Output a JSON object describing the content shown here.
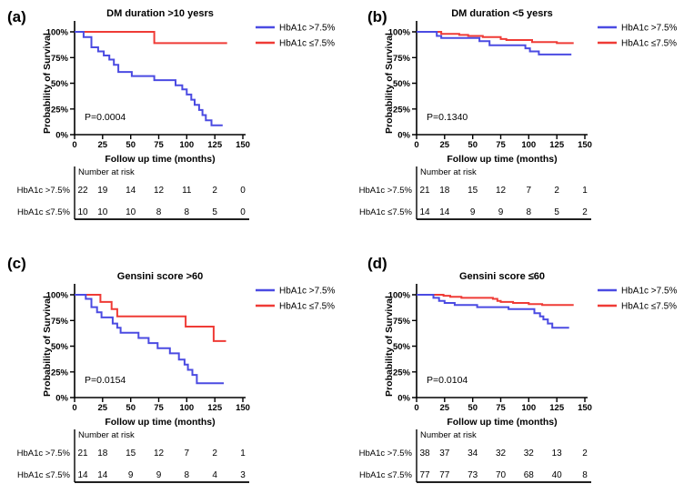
{
  "figure": {
    "background": "#ffffff",
    "description": "Kaplan-Meier survival curves, 2x2 grid of subgroup panels"
  },
  "colors": {
    "hba1c_high": "#4B4BE2",
    "hba1c_low": "#EF3B36",
    "axis": "#000000",
    "text": "#000000"
  },
  "chart_data": [
    {
      "type": "line",
      "subtype": "kaplan-meier-step",
      "panel_label": "(a)",
      "title": "DM duration >10 yesrs",
      "xlabel": "Follow up time (months)",
      "ylabel": "Probability of Survival",
      "xlim": [
        0,
        150
      ],
      "ylim": [
        0,
        100
      ],
      "grid": false,
      "legend_position": "right-top",
      "xtick_labels": [
        "0",
        "25",
        "50",
        "75",
        "100",
        "125",
        "150"
      ],
      "ytick_labels": [
        "100%",
        "75%",
        "50%",
        "25%",
        "0%"
      ],
      "pvalue": "P=0.0004",
      "series": [
        {
          "name": "HbA1c >7.5%",
          "color": "#4B4BE2",
          "steps": [
            [
              0,
              100
            ],
            [
              8,
              95
            ],
            [
              15,
              85
            ],
            [
              21,
              81
            ],
            [
              26,
              77
            ],
            [
              31,
              73
            ],
            [
              35,
              68
            ],
            [
              39,
              61
            ],
            [
              51,
              57
            ],
            [
              71,
              53
            ],
            [
              90,
              48
            ],
            [
              96,
              44
            ],
            [
              100,
              39
            ],
            [
              104,
              34
            ],
            [
              107,
              29
            ],
            [
              111,
              24
            ],
            [
              114,
              19
            ],
            [
              117,
              14
            ],
            [
              122,
              9
            ],
            [
              132,
              9
            ]
          ]
        },
        {
          "name": "HbA1c ≤7.5%",
          "color": "#EF3B36",
          "steps": [
            [
              0,
              100
            ],
            [
              71,
              89
            ],
            [
              136,
              89
            ]
          ]
        }
      ],
      "risk_table": {
        "header": "Number at risk",
        "rows": [
          {
            "label": "HbA1c >7.5%",
            "values": [
              "22",
              "19",
              "14",
              "12",
              "11",
              "2",
              "0"
            ]
          },
          {
            "label": "HbA1c ≤7.5%",
            "values": [
              "10",
              "10",
              "10",
              "8",
              "8",
              "5",
              "0"
            ]
          }
        ]
      }
    },
    {
      "type": "line",
      "subtype": "kaplan-meier-step",
      "panel_label": "(b)",
      "title": "DM duration <5 yesrs",
      "xlabel": "Follow up time (months)",
      "ylabel": "Probability of Survival",
      "xlim": [
        0,
        150
      ],
      "ylim": [
        0,
        100
      ],
      "grid": false,
      "legend_position": "right-top",
      "xtick_labels": [
        "0",
        "25",
        "50",
        "75",
        "100",
        "125",
        "150"
      ],
      "ytick_labels": [
        "100%",
        "75%",
        "50%",
        "25%",
        "0%"
      ],
      "pvalue": "P=0.1340",
      "series": [
        {
          "name": "HbA1c >7.5%",
          "color": "#4B4BE2",
          "steps": [
            [
              0,
              100
            ],
            [
              18,
              96
            ],
            [
              22,
              94
            ],
            [
              56,
              91
            ],
            [
              65,
              87
            ],
            [
              97,
              84
            ],
            [
              101,
              81
            ],
            [
              109,
              78
            ],
            [
              138,
              78
            ]
          ]
        },
        {
          "name": "HbA1c ≤7.5%",
          "color": "#EF3B36",
          "steps": [
            [
              0,
              100
            ],
            [
              22,
              98
            ],
            [
              38,
              97
            ],
            [
              46,
              96
            ],
            [
              59,
              95
            ],
            [
              75,
              93
            ],
            [
              80,
              92
            ],
            [
              103,
              90
            ],
            [
              125,
              89
            ],
            [
              140,
              89
            ]
          ]
        }
      ],
      "risk_table": {
        "header": "Number at risk",
        "rows": [
          {
            "label": "HbA1c >7.5%",
            "values": [
              "21",
              "18",
              "15",
              "12",
              "7",
              "2",
              "1"
            ]
          },
          {
            "label": "HbA1c ≤7.5%",
            "values": [
              "14",
              "14",
              "9",
              "9",
              "8",
              "5",
              "2"
            ]
          }
        ]
      }
    },
    {
      "type": "line",
      "subtype": "kaplan-meier-step",
      "panel_label": "(c)",
      "title": "Gensini score >60",
      "xlabel": "Follow up time (months)",
      "ylabel": "Probability of Survival",
      "xlim": [
        0,
        150
      ],
      "ylim": [
        0,
        100
      ],
      "grid": false,
      "legend_position": "right-top",
      "xtick_labels": [
        "0",
        "25",
        "50",
        "75",
        "100",
        "125",
        "150"
      ],
      "ytick_labels": [
        "100%",
        "75%",
        "50%",
        "25%",
        "0%"
      ],
      "pvalue": "P=0.0154",
      "series": [
        {
          "name": "HbA1c >7.5%",
          "color": "#4B4BE2",
          "steps": [
            [
              0,
              100
            ],
            [
              10,
              96
            ],
            [
              15,
              88
            ],
            [
              20,
              83
            ],
            [
              24,
              78
            ],
            [
              34,
              72
            ],
            [
              38,
              68
            ],
            [
              41,
              63
            ],
            [
              57,
              58
            ],
            [
              66,
              53
            ],
            [
              74,
              48
            ],
            [
              85,
              43
            ],
            [
              93,
              37
            ],
            [
              98,
              32
            ],
            [
              101,
              27
            ],
            [
              105,
              22
            ],
            [
              109,
              14
            ],
            [
              133,
              14
            ]
          ]
        },
        {
          "name": "HbA1c ≤7.5%",
          "color": "#EF3B36",
          "steps": [
            [
              0,
              100
            ],
            [
              23,
              93
            ],
            [
              33,
              86
            ],
            [
              38,
              79
            ],
            [
              99,
              69
            ],
            [
              124,
              55
            ],
            [
              135,
              55
            ]
          ]
        }
      ],
      "risk_table": {
        "header": "Number at risk",
        "rows": [
          {
            "label": "HbA1c >7.5%",
            "values": [
              "21",
              "18",
              "15",
              "12",
              "7",
              "2",
              "1"
            ]
          },
          {
            "label": "HbA1c ≤7.5%",
            "values": [
              "14",
              "14",
              "9",
              "9",
              "8",
              "4",
              "3"
            ]
          }
        ]
      }
    },
    {
      "type": "line",
      "subtype": "kaplan-meier-step",
      "panel_label": "(d)",
      "title": "Gensini score ≤60",
      "xlabel": "Follow up time (months)",
      "ylabel": "Probability of Survival",
      "xlim": [
        0,
        150
      ],
      "ylim": [
        0,
        100
      ],
      "grid": false,
      "legend_position": "right-top",
      "xtick_labels": [
        "0",
        "25",
        "50",
        "75",
        "100",
        "125",
        "150"
      ],
      "ytick_labels": [
        "100%",
        "75%",
        "50%",
        "25%",
        "0%"
      ],
      "pvalue": "P=0.0104",
      "series": [
        {
          "name": "HbA1c >7.5%",
          "color": "#4B4BE2",
          "steps": [
            [
              0,
              100
            ],
            [
              15,
              97
            ],
            [
              20,
              94
            ],
            [
              25,
              92
            ],
            [
              34,
              90
            ],
            [
              54,
              88
            ],
            [
              82,
              86
            ],
            [
              105,
              82
            ],
            [
              110,
              79
            ],
            [
              113,
              76
            ],
            [
              117,
              72
            ],
            [
              121,
              68
            ],
            [
              136,
              68
            ]
          ]
        },
        {
          "name": "HbA1c ≤7.5%",
          "color": "#EF3B36",
          "steps": [
            [
              0,
              100
            ],
            [
              24,
              99
            ],
            [
              30,
              98
            ],
            [
              40,
              97
            ],
            [
              68,
              96
            ],
            [
              72,
              94
            ],
            [
              75,
              93
            ],
            [
              86,
              92
            ],
            [
              100,
              91
            ],
            [
              112,
              90
            ],
            [
              140,
              90
            ]
          ]
        }
      ],
      "risk_table": {
        "header": "Number at risk",
        "rows": [
          {
            "label": "HbA1c >7.5%",
            "values": [
              "38",
              "37",
              "34",
              "32",
              "32",
              "13",
              "2"
            ]
          },
          {
            "label": "HbA1c ≤7.5%",
            "values": [
              "77",
              "77",
              "73",
              "70",
              "68",
              "40",
              "8"
            ]
          }
        ]
      }
    }
  ]
}
